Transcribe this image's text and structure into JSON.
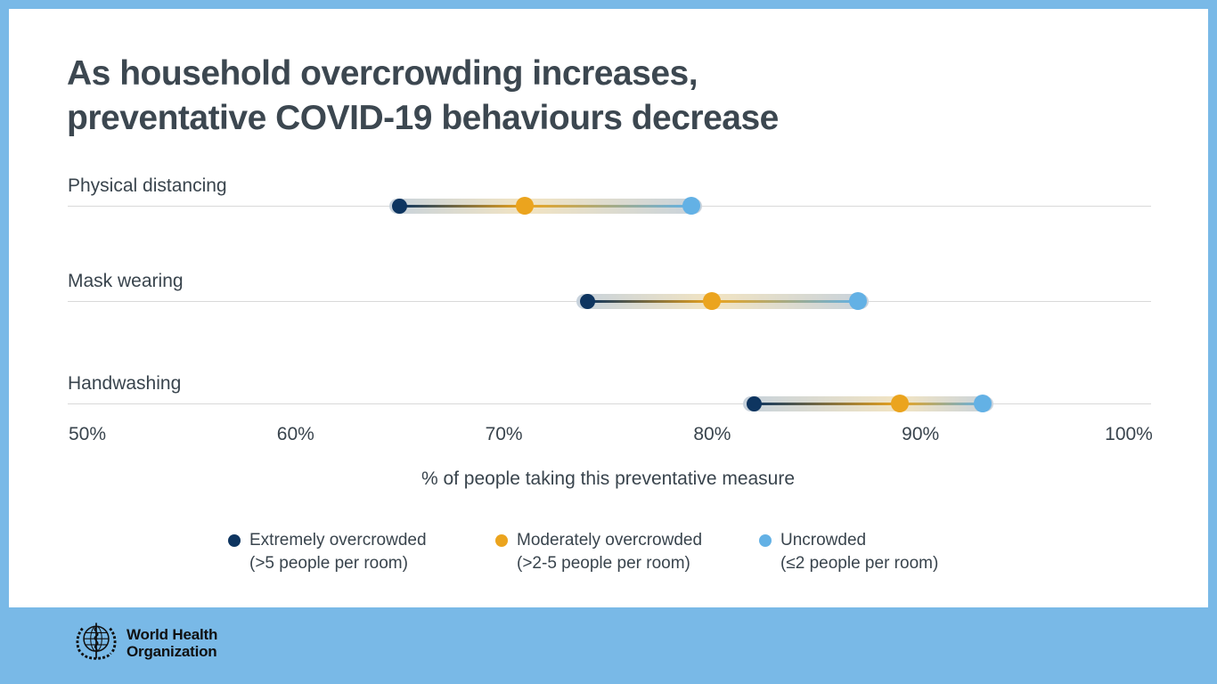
{
  "page": {
    "background_color": "#79b9e7",
    "card_color": "#ffffff"
  },
  "title": {
    "line1": "As household overcrowding increases,",
    "line2": "preventative COVID-19 behaviours decrease"
  },
  "chart_data": {
    "type": "dumbbell",
    "categories": [
      "Physical distancing",
      "Mask wearing",
      "Handwashing"
    ],
    "series": [
      {
        "name": "Extremely overcrowded (>5 people per room)",
        "color": "#0e3560",
        "values": [
          65,
          74,
          82
        ]
      },
      {
        "name": "Moderately overcrowded (>2-5 people per room)",
        "color": "#eba41e",
        "values": [
          71,
          80,
          89
        ]
      },
      {
        "name": "Uncrowded (≤2 people per room)",
        "color": "#63b1e5",
        "values": [
          79,
          87,
          93
        ]
      }
    ],
    "xlabel": "% of people taking this preventative measure",
    "xlim": [
      50,
      100
    ],
    "tick_values": [
      50,
      60,
      70,
      80,
      90,
      100
    ],
    "ticks": [
      "50%",
      "60%",
      "70%",
      "80%",
      "90%",
      "100%"
    ],
    "grid": "per-row horizontal hairlines only",
    "legend_position": "bottom",
    "band_colors": {
      "steel": "#c7d2dc",
      "amber": "#f2e4c2"
    }
  },
  "legend": {
    "items": [
      {
        "label": "Extremely overcrowded",
        "sublabel": "(>5 people per room)",
        "color": "#0e3560"
      },
      {
        "label": "Moderately overcrowded",
        "sublabel": "(>2-5 people per room)",
        "color": "#eba41e"
      },
      {
        "label": "Uncrowded",
        "sublabel": "(≤2 people per room)",
        "color": "#63b1e5"
      }
    ]
  },
  "footer": {
    "org_line1": "World Health",
    "org_line2": "Organization"
  }
}
